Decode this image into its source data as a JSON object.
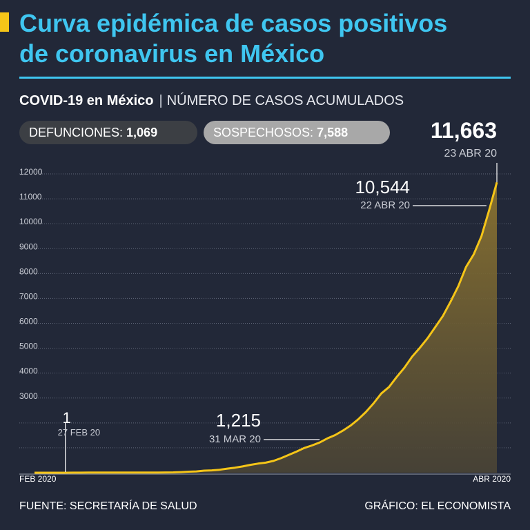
{
  "header": {
    "title_line1": "Curva epidémica de casos positivos",
    "title_line2": "de coronavirus en México",
    "subtitle_bold": "COVID-19 en México",
    "subtitle_sep": "|",
    "subtitle_light": "NÚMERO DE CASOS ACUMULADOS"
  },
  "stats": {
    "deaths_label": "DEFUNCIONES:",
    "deaths_value": "1,069",
    "suspected_label": "SOSPECHOSOS:",
    "suspected_value": "7,588"
  },
  "footer": {
    "source": "FUENTE: SECRETARÍA DE SALUD",
    "credit": "GRÁFICO: EL ECONOMISTA"
  },
  "colors": {
    "background": "#222838",
    "title": "#3fc6f0",
    "accent": "#f5c518",
    "line": "#f5c518"
  },
  "chart_data": {
    "type": "area",
    "title": "Curva epidémica de casos positivos de coronavirus en México",
    "xlabel": "",
    "ylabel": "Número de casos acumulados",
    "ylim": [
      0,
      12000
    ],
    "yticks": [
      3000,
      4000,
      5000,
      6000,
      7000,
      8000,
      9000,
      10000,
      11000,
      12000
    ],
    "x_start_label": "FEB 2020",
    "x_end_label": "ABR 2020",
    "grid": true,
    "series": [
      {
        "name": "Casos acumulados",
        "x": [
          0,
          1,
          2,
          3,
          4,
          5,
          6,
          7,
          8,
          9,
          10,
          11,
          12,
          13,
          14,
          15,
          16,
          17,
          18,
          19,
          20,
          21,
          22,
          23,
          24,
          25,
          26,
          27,
          28,
          29,
          30,
          31,
          32,
          33,
          34,
          35,
          36,
          37,
          38,
          39,
          40,
          41,
          42,
          43,
          44,
          45,
          46,
          47,
          48,
          49,
          50,
          51,
          52,
          53,
          54,
          55,
          56,
          57,
          58,
          59,
          60
        ],
        "dates": [
          "2020-02-23",
          "2020-02-24",
          "2020-02-25",
          "2020-02-26",
          "2020-02-27",
          "2020-02-28",
          "2020-02-29",
          "2020-03-01",
          "2020-03-02",
          "2020-03-03",
          "2020-03-04",
          "2020-03-05",
          "2020-03-06",
          "2020-03-07",
          "2020-03-08",
          "2020-03-09",
          "2020-03-10",
          "2020-03-11",
          "2020-03-12",
          "2020-03-13",
          "2020-03-14",
          "2020-03-15",
          "2020-03-16",
          "2020-03-17",
          "2020-03-18",
          "2020-03-19",
          "2020-03-20",
          "2020-03-21",
          "2020-03-22",
          "2020-03-23",
          "2020-03-24",
          "2020-03-25",
          "2020-03-26",
          "2020-03-27",
          "2020-03-28",
          "2020-03-29",
          "2020-03-30",
          "2020-03-31",
          "2020-04-01",
          "2020-04-02",
          "2020-04-03",
          "2020-04-04",
          "2020-04-05",
          "2020-04-06",
          "2020-04-07",
          "2020-04-08",
          "2020-04-09",
          "2020-04-10",
          "2020-04-11",
          "2020-04-12",
          "2020-04-13",
          "2020-04-14",
          "2020-04-15",
          "2020-04-16",
          "2020-04-17",
          "2020-04-18",
          "2020-04-19",
          "2020-04-20",
          "2020-04-21",
          "2020-04-22",
          "2020-04-23"
        ],
        "values": [
          0,
          0,
          0,
          0,
          1,
          2,
          4,
          5,
          5,
          5,
          5,
          5,
          6,
          7,
          7,
          7,
          7,
          11,
          15,
          26,
          41,
          53,
          82,
          93,
          118,
          164,
          203,
          251,
          316,
          367,
          405,
          475,
          585,
          717,
          848,
          993,
          1094,
          1215,
          1378,
          1510,
          1688,
          1890,
          2143,
          2439,
          2785,
          3181,
          3441,
          3844,
          4219,
          4661,
          5014,
          5399,
          5847,
          6297,
          6875,
          7497,
          8261,
          8772,
          9501,
          10544,
          11663
        ]
      }
    ],
    "annotations": [
      {
        "value": "1",
        "date": "27 FEB 20"
      },
      {
        "value": "1,215",
        "date": "31 MAR 20"
      },
      {
        "value": "10,544",
        "date": "22 ABR 20"
      },
      {
        "value": "11,663",
        "date": "23 ABR 20"
      }
    ]
  }
}
